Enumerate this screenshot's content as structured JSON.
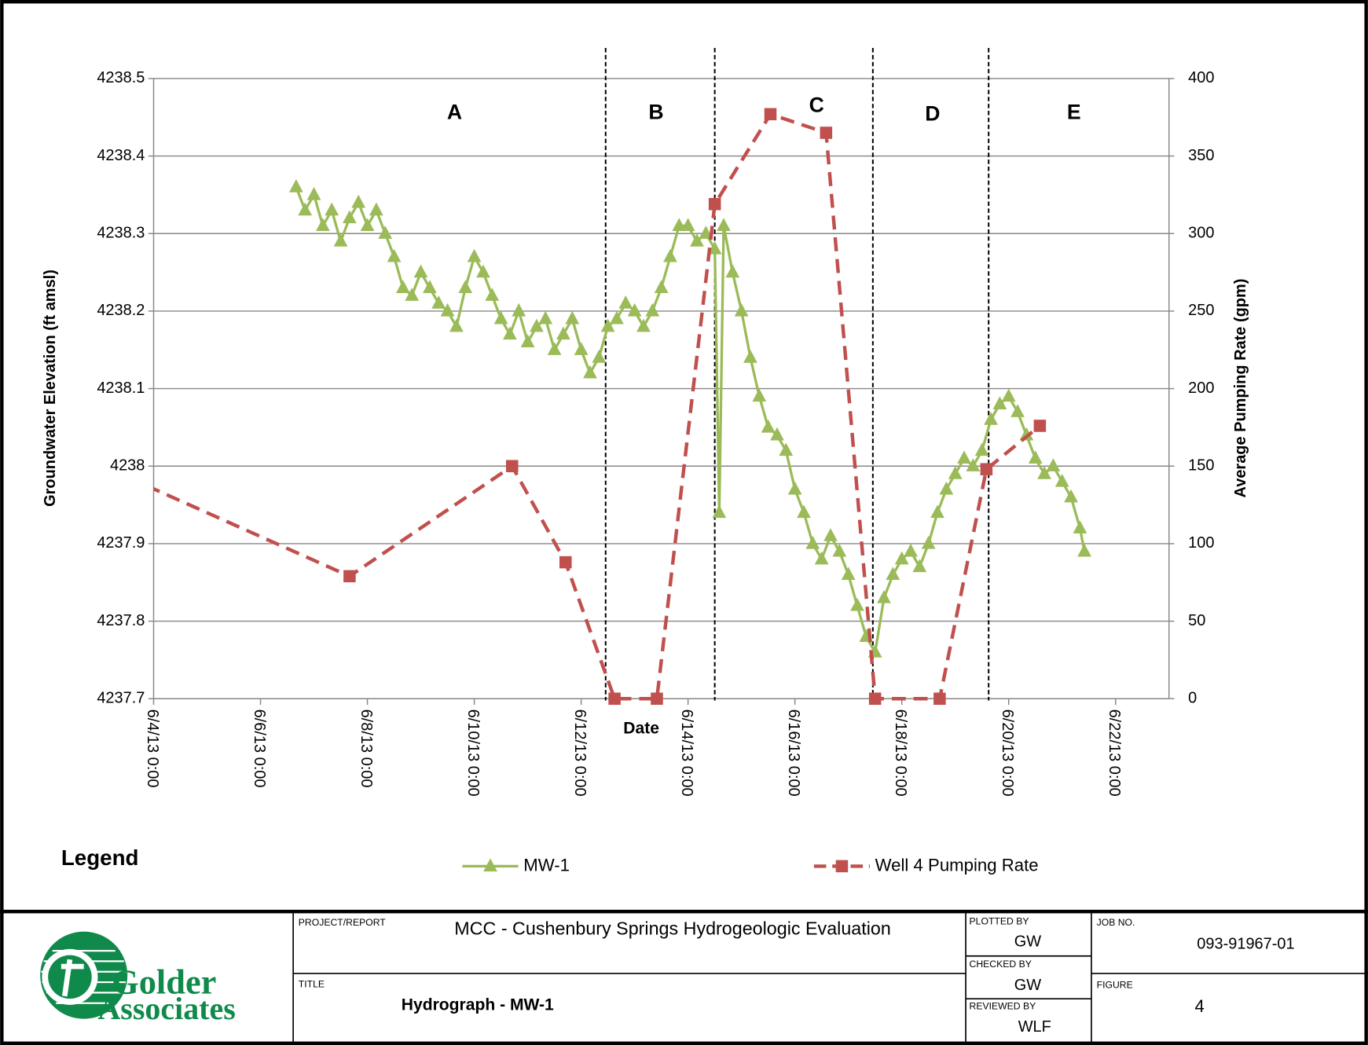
{
  "chart_data": {
    "type": "line",
    "x_label": "Date",
    "y_label": "Groundwater Elevation (ft amsl)",
    "y2_label": "Average Pumping Rate (gpm)",
    "xlim": [
      "2013-06-04T00:00",
      "2013-06-23T00:00"
    ],
    "xticks": [
      {
        "value": "2013-06-04T00:00",
        "label": "6/4/13 0:00"
      },
      {
        "value": "2013-06-06T00:00",
        "label": "6/6/13 0:00"
      },
      {
        "value": "2013-06-08T00:00",
        "label": "6/8/13 0:00"
      },
      {
        "value": "2013-06-10T00:00",
        "label": "6/10/13 0:00"
      },
      {
        "value": "2013-06-12T00:00",
        "label": "6/12/13 0:00"
      },
      {
        "value": "2013-06-14T00:00",
        "label": "6/14/13 0:00"
      },
      {
        "value": "2013-06-16T00:00",
        "label": "6/16/13 0:00"
      },
      {
        "value": "2013-06-18T00:00",
        "label": "6/18/13 0:00"
      },
      {
        "value": "2013-06-20T00:00",
        "label": "6/20/13 0:00"
      },
      {
        "value": "2013-06-22T00:00",
        "label": "6/22/13 0:00"
      }
    ],
    "ylim": [
      4237.7,
      4238.5
    ],
    "yticks": [
      4237.7,
      4237.8,
      4237.9,
      4238,
      4238.1,
      4238.2,
      4238.3,
      4238.4,
      4238.5
    ],
    "y2lim": [
      0,
      400
    ],
    "y2ticks": [
      0,
      50,
      100,
      150,
      200,
      250,
      300,
      350,
      400
    ],
    "grid": true,
    "legend_title": "Legend",
    "dividers": [
      "2013-06-12T11:00",
      "2013-06-14T12:00",
      "2013-06-17T11:00",
      "2013-06-19T15:00"
    ],
    "regions": [
      "A",
      "B",
      "C",
      "D",
      "E"
    ],
    "series": [
      {
        "name": "MW-1",
        "color": "#9bbb59",
        "marker": "triangle",
        "axis": "y",
        "x": [
          "2013-06-06T16:00",
          "2013-06-06T20:00",
          "2013-06-07T00:00",
          "2013-06-07T04:00",
          "2013-06-07T08:00",
          "2013-06-07T12:00",
          "2013-06-07T16:00",
          "2013-06-07T20:00",
          "2013-06-08T00:00",
          "2013-06-08T04:00",
          "2013-06-08T08:00",
          "2013-06-08T12:00",
          "2013-06-08T16:00",
          "2013-06-08T20:00",
          "2013-06-09T00:00",
          "2013-06-09T04:00",
          "2013-06-09T08:00",
          "2013-06-09T12:00",
          "2013-06-09T16:00",
          "2013-06-09T20:00",
          "2013-06-10T00:00",
          "2013-06-10T04:00",
          "2013-06-10T08:00",
          "2013-06-10T12:00",
          "2013-06-10T16:00",
          "2013-06-10T20:00",
          "2013-06-11T00:00",
          "2013-06-11T04:00",
          "2013-06-11T08:00",
          "2013-06-11T12:00",
          "2013-06-11T16:00",
          "2013-06-11T20:00",
          "2013-06-12T00:00",
          "2013-06-12T04:00",
          "2013-06-12T08:00",
          "2013-06-12T12:00",
          "2013-06-12T16:00",
          "2013-06-12T20:00",
          "2013-06-13T00:00",
          "2013-06-13T04:00",
          "2013-06-13T08:00",
          "2013-06-13T12:00",
          "2013-06-13T16:00",
          "2013-06-13T20:00",
          "2013-06-14T00:00",
          "2013-06-14T04:00",
          "2013-06-14T08:00",
          "2013-06-14T12:00",
          "2013-06-14T14:00",
          "2013-06-14T16:00",
          "2013-06-14T20:00",
          "2013-06-15T00:00",
          "2013-06-15T04:00",
          "2013-06-15T08:00",
          "2013-06-15T12:00",
          "2013-06-15T16:00",
          "2013-06-15T20:00",
          "2013-06-16T00:00",
          "2013-06-16T04:00",
          "2013-06-16T08:00",
          "2013-06-16T12:00",
          "2013-06-16T16:00",
          "2013-06-16T20:00",
          "2013-06-17T00:00",
          "2013-06-17T04:00",
          "2013-06-17T08:00",
          "2013-06-17T12:00",
          "2013-06-17T16:00",
          "2013-06-17T20:00",
          "2013-06-18T00:00",
          "2013-06-18T04:00",
          "2013-06-18T08:00",
          "2013-06-18T12:00",
          "2013-06-18T16:00",
          "2013-06-18T20:00",
          "2013-06-19T00:00",
          "2013-06-19T04:00",
          "2013-06-19T08:00",
          "2013-06-19T12:00",
          "2013-06-19T16:00",
          "2013-06-19T20:00",
          "2013-06-20T00:00",
          "2013-06-20T04:00",
          "2013-06-20T08:00",
          "2013-06-20T12:00",
          "2013-06-20T16:00",
          "2013-06-20T20:00",
          "2013-06-21T00:00",
          "2013-06-21T04:00",
          "2013-06-21T08:00",
          "2013-06-21T10:00"
        ],
        "values": [
          4238.36,
          4238.33,
          4238.35,
          4238.31,
          4238.33,
          4238.29,
          4238.32,
          4238.34,
          4238.31,
          4238.33,
          4238.3,
          4238.27,
          4238.23,
          4238.22,
          4238.25,
          4238.23,
          4238.21,
          4238.2,
          4238.18,
          4238.23,
          4238.27,
          4238.25,
          4238.22,
          4238.19,
          4238.17,
          4238.2,
          4238.16,
          4238.18,
          4238.19,
          4238.15,
          4238.17,
          4238.19,
          4238.15,
          4238.12,
          4238.14,
          4238.18,
          4238.19,
          4238.21,
          4238.2,
          4238.18,
          4238.2,
          4238.23,
          4238.27,
          4238.31,
          4238.31,
          4238.29,
          4238.3,
          4238.28,
          4237.94,
          4238.31,
          4238.25,
          4238.2,
          4238.14,
          4238.09,
          4238.05,
          4238.04,
          4238.02,
          4237.97,
          4237.94,
          4237.9,
          4237.88,
          4237.91,
          4237.89,
          4237.86,
          4237.82,
          4237.78,
          4237.76,
          4237.83,
          4237.86,
          4237.88,
          4237.89,
          4237.87,
          4237.9,
          4237.94,
          4237.97,
          4237.99,
          4238.01,
          4238,
          4238.02,
          4238.06,
          4238.08,
          4238.09,
          4238.07,
          4238.04,
          4238.01,
          4237.99,
          4238,
          4237.98,
          4237.96,
          4237.92,
          4237.89
        ]
      },
      {
        "name": "Well 4 Pumping Rate",
        "color": "#c0504d",
        "marker": "square",
        "axis": "y2",
        "x": [
          "2013-06-03T12:00",
          "2013-06-07T16:00",
          "2013-06-10T17:00",
          "2013-06-11T17:00",
          "2013-06-12T15:00",
          "2013-06-13T10:00",
          "2013-06-14T12:00",
          "2013-06-15T13:00",
          "2013-06-16T14:00",
          "2013-06-17T12:00",
          "2013-06-18T17:00",
          "2013-06-19T14:00",
          "2013-06-20T14:00"
        ],
        "values": [
          143,
          79,
          150,
          88,
          0,
          0,
          319,
          377,
          365,
          0,
          0,
          148,
          176
        ]
      }
    ]
  },
  "title_block": {
    "logo": [
      "Golder",
      "Associates"
    ],
    "project_label": "PROJECT/REPORT",
    "project": "MCC - Cushenbury  Springs Hydrogeologic Evaluation",
    "title_label": "TITLE",
    "title": "Hydrograph - MW-1",
    "plotted_by_label": "PLOTTED BY",
    "plotted_by": "GW",
    "checked_by_label": "CHECKED BY",
    "checked_by": "GW",
    "reviewed_by_label": "REVIEWED BY",
    "reviewed_by": "WLF",
    "job_label": "JOB NO.",
    "job": "093-91967-01",
    "figure_label": "FIGURE",
    "figure": "4"
  }
}
